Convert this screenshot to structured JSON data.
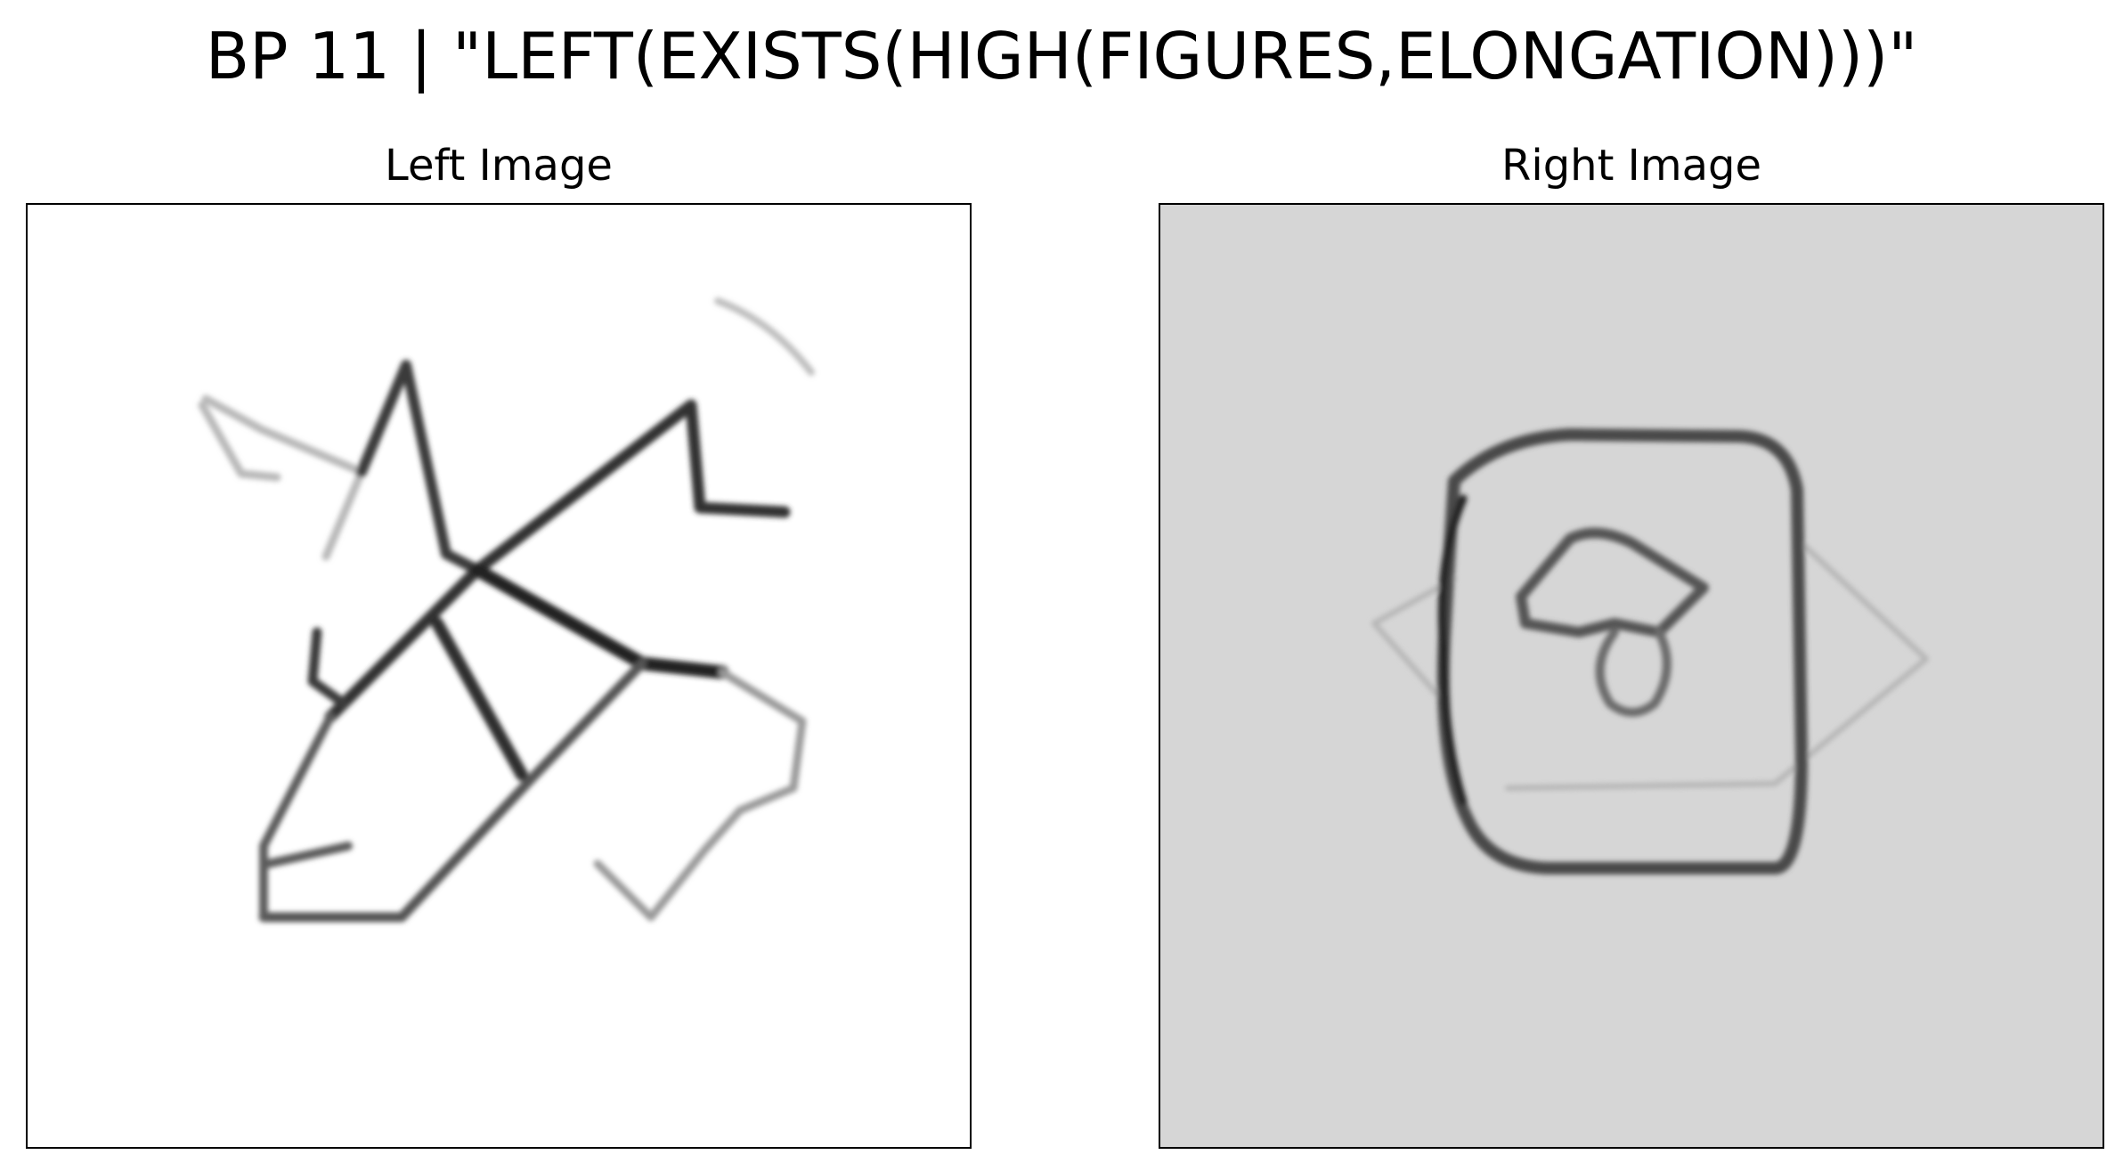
{
  "figure": {
    "title": "BP 11 | \"LEFT(EXISTS(HIGH(FIGURES,ELONGATION)))\""
  },
  "panels": {
    "left": {
      "title": "Left Image",
      "background": "#ffffff",
      "ink": "#1a1a1a"
    },
    "right": {
      "title": "Right Image",
      "background": "#d6d6d6",
      "ink": "#2a2a2a"
    }
  }
}
